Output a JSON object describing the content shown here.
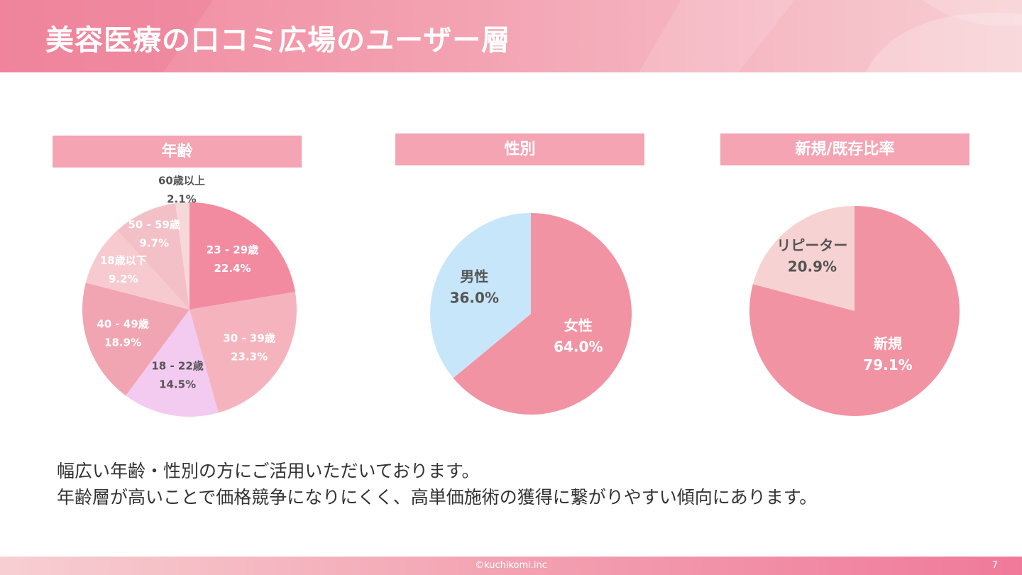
{
  "header": {
    "title": "美容医療の口コミ広場のユーザー層"
  },
  "chart_data": [
    {
      "type": "pie",
      "title": "年齢",
      "start_angle_deg": 0,
      "direction": "clockwise",
      "slices": [
        {
          "label": "23 - 29歳",
          "value": 22.4,
          "value_text": "22.4%",
          "color": "#f28ba0",
          "text_color": "#ffffff"
        },
        {
          "label": "30 - 39歳",
          "value": 23.3,
          "value_text": "23.3%",
          "color": "#f5b4bd",
          "text_color": "#ffffff"
        },
        {
          "label": "18 - 22歳",
          "value": 14.5,
          "value_text": "14.5%",
          "color": "#f3cbf1",
          "text_color": "#555555"
        },
        {
          "label": "40 - 49歳",
          "value": 18.9,
          "value_text": "18.9%",
          "color": "#f1a5b2",
          "text_color": "#ffffff"
        },
        {
          "label": "18歳以下",
          "value": 9.2,
          "value_text": "9.2%",
          "color": "#f6cacf",
          "text_color": "#ffffff"
        },
        {
          "label": "50 - 59歳",
          "value": 9.7,
          "value_text": "9.7%",
          "color": "#f4c0c7",
          "text_color": "#ffffff"
        },
        {
          "label": "60歳以上",
          "value": 2.1,
          "value_text": "2.1%",
          "color": "#f7d8da",
          "text_color": "#555555"
        }
      ]
    },
    {
      "type": "pie",
      "title": "性別",
      "start_angle_deg": 0,
      "direction": "clockwise",
      "slices": [
        {
          "label": "女性",
          "value": 64.0,
          "value_text": "64.0%",
          "color": "#f293a4",
          "text_color": "#ffffff"
        },
        {
          "label": "男性",
          "value": 36.0,
          "value_text": "36.0%",
          "color": "#c8e6fa",
          "text_color": "#555555"
        }
      ]
    },
    {
      "type": "pie",
      "title": "新規/既存比率",
      "start_angle_deg": 0,
      "direction": "clockwise",
      "slices": [
        {
          "label": "新規",
          "value": 79.1,
          "value_text": "79.1%",
          "color": "#f293a4",
          "text_color": "#ffffff"
        },
        {
          "label": "リピーター",
          "value": 20.9,
          "value_text": "20.9%",
          "color": "#f7d2d2",
          "text_color": "#555555"
        }
      ]
    }
  ],
  "description": {
    "line1": "幅広い年齢・性別の方にご活用いただいております。",
    "line2": "年齢層が高いことで価格競争になりにくく、高単価施術の獲得に繋がりやすい傾向にあります。"
  },
  "footer": {
    "copyright": "©kuchikomi.inc",
    "page_number": "7"
  }
}
